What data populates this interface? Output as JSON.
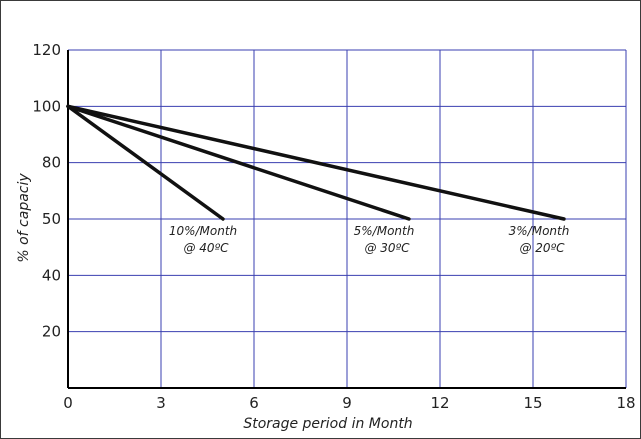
{
  "chart_data": {
    "type": "line",
    "title": "",
    "xlabel": "Storage period in Month",
    "ylabel": "% of capaciy",
    "xlim": [
      0,
      18
    ],
    "ylim": [
      0,
      120
    ],
    "xticks": [
      0,
      3,
      6,
      9,
      12,
      15,
      18
    ],
    "yticks": [
      20,
      40,
      50,
      80,
      100,
      120
    ],
    "ytick_labels": [
      "20",
      "40",
      "50",
      "80",
      "100",
      "120"
    ],
    "grid": true,
    "series": [
      {
        "x": [
          0,
          5
        ],
        "y": [
          100,
          50
        ],
        "annotation": [
          "10%/Month",
          "@ 40ºC"
        ]
      },
      {
        "x": [
          0,
          11
        ],
        "y": [
          100,
          50
        ],
        "annotation": [
          "5%/Month",
          "@ 30ºC"
        ]
      },
      {
        "x": [
          0,
          16
        ],
        "y": [
          100,
          50
        ],
        "annotation": [
          "3%/Month",
          "@ 20ºC"
        ]
      }
    ],
    "colors": {
      "grid": "#3a3fb0",
      "axis": "#000000",
      "line": "#111111"
    }
  }
}
